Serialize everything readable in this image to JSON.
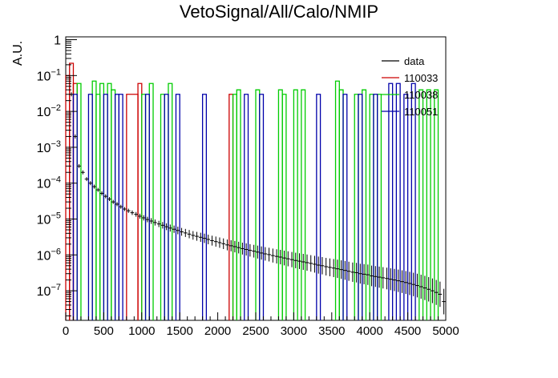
{
  "chart_data": {
    "type": "line",
    "title": "VetoSignal/All/Calo/NMIP",
    "xlabel": "",
    "ylabel": "A.U.",
    "xlim": [
      0,
      5000
    ],
    "ylim": [
      1.5e-08,
      1.2
    ],
    "yscale": "log",
    "grid": false,
    "legend_position": "top-right",
    "bin_width": 50,
    "x_ticks": [
      0,
      500,
      1000,
      1500,
      2000,
      2500,
      3000,
      3500,
      4000,
      4500,
      5000
    ],
    "y_ticks": [
      {
        "value": 1,
        "label": "1"
      },
      {
        "value": 0.1,
        "base": "10",
        "exp": "−1"
      },
      {
        "value": 0.01,
        "base": "10",
        "exp": "−2"
      },
      {
        "value": 0.001,
        "base": "10",
        "exp": "−3"
      },
      {
        "value": 0.0001,
        "base": "10",
        "exp": "−4"
      },
      {
        "value": 1e-05,
        "base": "10",
        "exp": "−5"
      },
      {
        "value": 1e-06,
        "base": "10",
        "exp": "−6"
      },
      {
        "value": 1e-07,
        "base": "10",
        "exp": "−7"
      }
    ],
    "series": [
      {
        "name": "data",
        "style": "points",
        "color": "#000000",
        "x": [
          75,
          125,
          175,
          225,
          275,
          325,
          375,
          425,
          475,
          525,
          575,
          625,
          675,
          725,
          775,
          825,
          875,
          925,
          975,
          1025,
          1075,
          1125,
          1175,
          1225,
          1275,
          1325,
          1375,
          1425,
          1475,
          1525,
          1575,
          1625,
          1675,
          1725,
          1775,
          1825,
          1875,
          1925,
          1975,
          2025,
          2075,
          2125,
          2175,
          2225,
          2275,
          2325,
          2375,
          2425,
          2475,
          2525,
          2575,
          2625,
          2675,
          2725,
          2775,
          2825,
          2875,
          2925,
          2975,
          3025,
          3075,
          3125,
          3175,
          3225,
          3275,
          3325,
          3375,
          3425,
          3475,
          3525,
          3575,
          3625,
          3675,
          3725,
          3775,
          3825,
          3875,
          3925,
          3975,
          4025,
          4075,
          4125,
          4175,
          4225,
          4275,
          4325,
          4375,
          4425,
          4475,
          4525,
          4575,
          4625,
          4675,
          4725,
          4775,
          4825,
          4875,
          4925,
          4975
        ],
        "y": [
          0.03,
          0.002,
          0.0003,
          0.0002,
          0.00013,
          0.0001,
          8e-05,
          6.5e-05,
          5.2e-05,
          4.3e-05,
          3.6e-05,
          3e-05,
          2.6e-05,
          2.2e-05,
          1.9e-05,
          1.7e-05,
          1.5e-05,
          1.35e-05,
          1.2e-05,
          1.08e-05,
          9.7e-06,
          8.8e-06,
          8e-06,
          7.3e-06,
          6.7e-06,
          6.1e-06,
          5.6e-06,
          5.2e-06,
          4.8e-06,
          4.4e-06,
          4.1e-06,
          3.8e-06,
          3.5e-06,
          3.3e-06,
          3.1e-06,
          2.9e-06,
          2.7e-06,
          2.5e-06,
          2.35e-06,
          2.2e-06,
          2.05e-06,
          1.9e-06,
          1.8e-06,
          1.7e-06,
          1.6e-06,
          1.5e-06,
          1.42e-06,
          1.34e-06,
          1.27e-06,
          1.2e-06,
          1.13e-06,
          1.07e-06,
          1.02e-06,
          9.6e-07,
          9.1e-07,
          8.7e-07,
          8.2e-07,
          7.8e-07,
          7.4e-07,
          7e-07,
          6.7e-07,
          6.4e-07,
          6.1e-07,
          5.8e-07,
          5.5e-07,
          5.2e-07,
          5e-07,
          4.7e-07,
          4.5e-07,
          4.3e-07,
          4.1e-07,
          3.9e-07,
          3.7e-07,
          3.5e-07,
          3.3e-07,
          3.2e-07,
          3e-07,
          2.9e-07,
          2.8e-07,
          2.6e-07,
          2.5e-07,
          2.4e-07,
          2.3e-07,
          2.2e-07,
          2.1e-07,
          2e-07,
          1.9e-07,
          1.8e-07,
          1.7e-07,
          1.6e-07,
          1.5e-07,
          1.4e-07,
          1.3e-07,
          1.2e-07,
          1.1e-07,
          1e-07,
          9e-08,
          8e-08,
          5e-08
        ]
      },
      {
        "name": "110033",
        "style": "step",
        "color": "#cc0000",
        "bars": [
          {
            "x0": 0,
            "x1": 50,
            "y": 0.1
          },
          {
            "x0": 50,
            "x1": 100,
            "y": 0.22
          },
          {
            "x0": 100,
            "x1": 150,
            "y": 0.06
          },
          {
            "x0": 800,
            "x1": 950,
            "y": 0.03
          },
          {
            "x0": 950,
            "x1": 1000,
            "y": 0.06
          },
          {
            "x0": 2150,
            "x1": 2200,
            "y": 0.03
          }
        ]
      },
      {
        "name": "110038",
        "style": "step",
        "color": "#00cc00",
        "bars": [
          {
            "x0": 150,
            "x1": 200,
            "y": 0.06
          },
          {
            "x0": 350,
            "x1": 400,
            "y": 0.07
          },
          {
            "x0": 400,
            "x1": 450,
            "y": 0.03
          },
          {
            "x0": 450,
            "x1": 500,
            "y": 0.06
          },
          {
            "x0": 550,
            "x1": 600,
            "y": 0.06
          },
          {
            "x0": 600,
            "x1": 650,
            "y": 0.04
          },
          {
            "x0": 1000,
            "x1": 1050,
            "y": 0.03
          },
          {
            "x0": 1100,
            "x1": 1150,
            "y": 0.06
          },
          {
            "x0": 1250,
            "x1": 1300,
            "y": 0.03
          },
          {
            "x0": 1350,
            "x1": 1400,
            "y": 0.06
          },
          {
            "x0": 2200,
            "x1": 2250,
            "y": 0.03
          },
          {
            "x0": 2250,
            "x1": 2300,
            "y": 0.04
          },
          {
            "x0": 2500,
            "x1": 2550,
            "y": 0.04
          },
          {
            "x0": 2800,
            "x1": 2850,
            "y": 0.04
          },
          {
            "x0": 2850,
            "x1": 2900,
            "y": 0.03
          },
          {
            "x0": 3000,
            "x1": 3050,
            "y": 0.04
          },
          {
            "x0": 3100,
            "x1": 3150,
            "y": 0.04
          },
          {
            "x0": 3550,
            "x1": 3600,
            "y": 0.07
          },
          {
            "x0": 3600,
            "x1": 3650,
            "y": 0.04
          },
          {
            "x0": 3800,
            "x1": 3850,
            "y": 0.03
          },
          {
            "x0": 3900,
            "x1": 3950,
            "y": 0.04
          },
          {
            "x0": 4000,
            "x1": 4050,
            "y": 0.03
          },
          {
            "x0": 4100,
            "x1": 4150,
            "y": 0.03
          },
          {
            "x0": 4650,
            "x1": 4700,
            "y": 0.04
          },
          {
            "x0": 4750,
            "x1": 4800,
            "y": 0.04
          },
          {
            "x0": 4850,
            "x1": 4900,
            "y": 0.04
          }
        ]
      },
      {
        "name": "110051",
        "style": "step",
        "color": "#0000aa",
        "bars": [
          {
            "x0": 100,
            "x1": 150,
            "y": 0.03
          },
          {
            "x0": 300,
            "x1": 350,
            "y": 0.03
          },
          {
            "x0": 500,
            "x1": 550,
            "y": 0.03
          },
          {
            "x0": 650,
            "x1": 700,
            "y": 0.03
          },
          {
            "x0": 700,
            "x1": 750,
            "y": 0.03
          },
          {
            "x0": 1050,
            "x1": 1100,
            "y": 0.03
          },
          {
            "x0": 1300,
            "x1": 1350,
            "y": 0.03
          },
          {
            "x0": 1450,
            "x1": 1500,
            "y": 0.03
          },
          {
            "x0": 1800,
            "x1": 1850,
            "y": 0.03
          },
          {
            "x0": 2350,
            "x1": 2400,
            "y": 0.03
          },
          {
            "x0": 2550,
            "x1": 2600,
            "y": 0.03
          },
          {
            "x0": 3300,
            "x1": 3350,
            "y": 0.03
          },
          {
            "x0": 3650,
            "x1": 3700,
            "y": 0.03
          },
          {
            "x0": 3850,
            "x1": 3900,
            "y": 0.03
          },
          {
            "x0": 4050,
            "x1": 4100,
            "y": 0.03
          },
          {
            "x0": 4250,
            "x1": 4300,
            "y": 0.06
          },
          {
            "x0": 4350,
            "x1": 4400,
            "y": 0.06
          },
          {
            "x0": 4450,
            "x1": 4500,
            "y": 0.03
          },
          {
            "x0": 4550,
            "x1": 4600,
            "y": 0.06
          }
        ]
      }
    ]
  }
}
